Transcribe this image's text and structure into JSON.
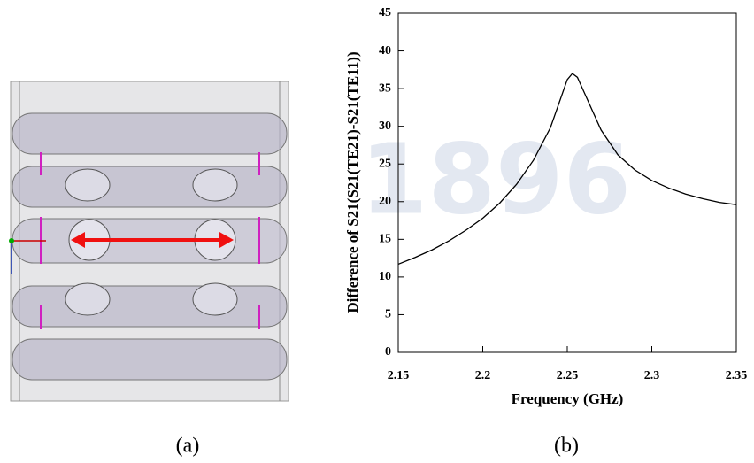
{
  "watermark": "1896",
  "captions": [
    "(a)",
    "(b)"
  ],
  "chart_data": {
    "type": "line",
    "xlabel": "Frequency (GHz)",
    "ylabel": "Difference of S21(S21(TE21)-S21(TE11))",
    "x": [
      2.15,
      2.16,
      2.17,
      2.18,
      2.19,
      2.2,
      2.21,
      2.22,
      2.23,
      2.24,
      2.245,
      2.25,
      2.253,
      2.256,
      2.26,
      2.27,
      2.28,
      2.29,
      2.3,
      2.31,
      2.32,
      2.33,
      2.34,
      2.35
    ],
    "series": [
      {
        "color": "#000000",
        "values": [
          11.7,
          12.6,
          13.6,
          14.8,
          16.2,
          17.8,
          19.8,
          22.3,
          25.5,
          29.8,
          33,
          36.2,
          37,
          36.5,
          34.5,
          29.5,
          26.2,
          24.2,
          22.8,
          21.8,
          21.0,
          20.4,
          19.9,
          19.6
        ]
      }
    ],
    "xlim": [
      2.15,
      2.35
    ],
    "ylim": [
      0,
      45
    ],
    "xticks": [
      2.15,
      2.2,
      2.25,
      2.3,
      2.35
    ],
    "yticks": [
      0,
      5,
      10,
      15,
      20,
      25,
      30,
      35,
      40,
      45
    ]
  }
}
